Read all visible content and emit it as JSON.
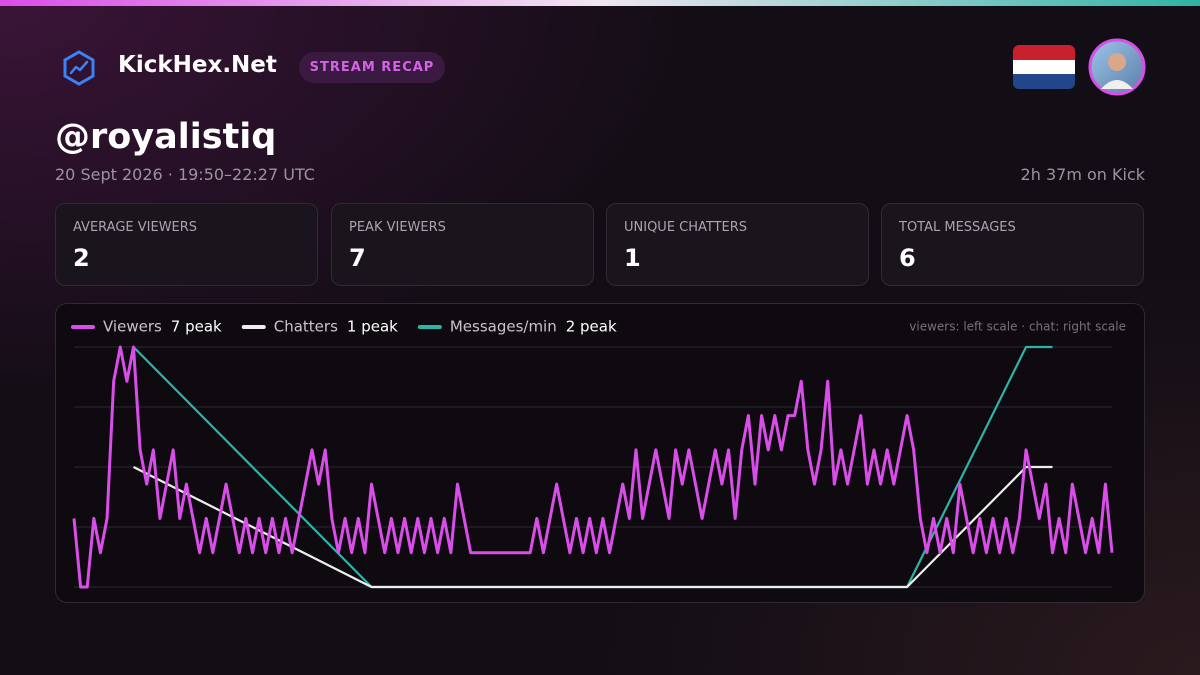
{
  "header": {
    "brand": "KickHex.Net",
    "badge": "STREAM RECAP",
    "channel": "@royalistiq",
    "date": "20 Sept 2026 · 19:50–22:27 UTC",
    "duration": "2h 37m on Kick"
  },
  "stats": [
    {
      "label": "AVERAGE VIEWERS",
      "value": 2
    },
    {
      "label": "PEAK VIEWERS",
      "value": 7
    },
    {
      "label": "UNIQUE CHATTERS",
      "value": 1
    },
    {
      "label": "TOTAL MESSAGES",
      "value": 6
    }
  ],
  "chart_data": {
    "type": "line",
    "legend_note": "viewers: left scale · chat: right scale",
    "xlim": [
      0,
      157
    ],
    "ylim": [
      0,
      7
    ],
    "yticks": [
      0,
      1.75,
      3.5,
      5.25,
      7
    ],
    "y2lim": [
      0,
      2
    ],
    "grid": true,
    "series": [
      {
        "name": "Viewers",
        "peak_label": "7 peak",
        "color": "#d94ee8",
        "values": [
          2,
          0,
          0,
          2,
          1,
          2,
          6,
          7,
          6,
          7,
          4,
          3,
          4,
          2,
          3,
          4,
          2,
          3,
          2,
          1,
          2,
          1,
          2,
          3,
          2,
          1,
          2,
          1,
          2,
          1,
          2,
          1,
          2,
          1,
          2,
          3,
          4,
          3,
          4,
          2,
          1,
          2,
          1,
          2,
          1,
          3,
          2,
          1,
          2,
          1,
          2,
          1,
          2,
          1,
          2,
          1,
          2,
          1,
          3,
          2,
          1,
          1,
          1,
          1,
          1,
          1,
          1,
          1,
          1,
          1,
          2,
          1,
          2,
          3,
          2,
          1,
          2,
          1,
          2,
          1,
          2,
          1,
          2,
          3,
          2,
          4,
          2,
          3,
          4,
          3,
          2,
          4,
          3,
          4,
          3,
          2,
          3,
          4,
          3,
          4,
          2,
          4,
          5,
          3,
          5,
          4,
          5,
          4,
          5,
          5,
          6,
          4,
          3,
          4,
          6,
          3,
          4,
          3,
          4,
          5,
          3,
          4,
          3,
          4,
          3,
          4,
          5,
          4,
          2,
          1,
          2,
          1,
          2,
          1,
          3,
          2,
          1,
          2,
          1,
          2,
          1,
          2,
          1,
          2,
          4,
          3,
          2,
          3,
          1,
          2,
          1,
          3,
          2,
          1,
          2,
          1,
          3,
          1
        ]
      },
      {
        "name": "Chatters",
        "peak_label": "1 peak",
        "color": "#eeeeee",
        "axis": "y2",
        "x": [
          9,
          45,
          126,
          144,
          148
        ],
        "values": [
          1,
          0,
          0,
          1,
          1
        ]
      },
      {
        "name": "Messages/min",
        "peak_label": "2 peak",
        "color": "#2fb3a6",
        "axis": "y2",
        "x": [
          9,
          45,
          126,
          144,
          148
        ],
        "values": [
          2,
          0,
          0,
          2,
          2
        ]
      }
    ]
  }
}
